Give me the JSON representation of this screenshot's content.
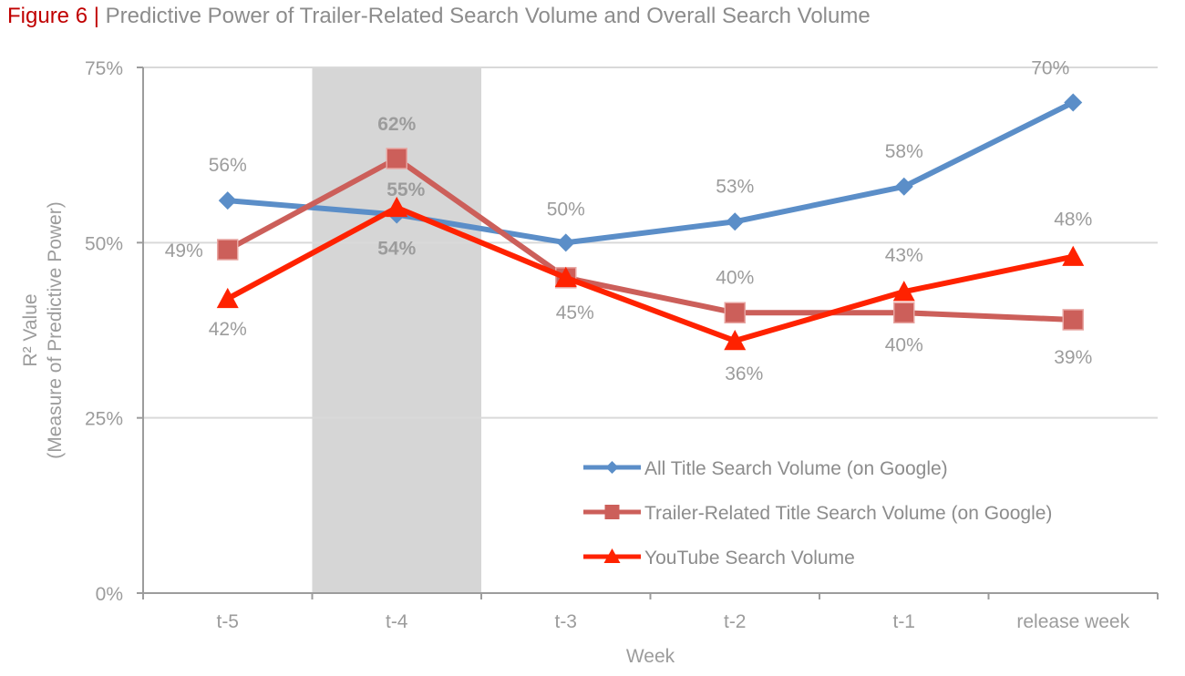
{
  "figure": {
    "number": "Figure 6",
    "separator": "|",
    "title": "Predictive Power of Trailer-Related Search Volume and Overall Search Volume"
  },
  "chart_data": {
    "type": "line",
    "title": "Predictive Power of Trailer-Related Search Volume and Overall Search Volume",
    "xlabel": "Week",
    "ylabel_line1": "R² Value",
    "ylabel_line2": "(Measure of Predictive Power)",
    "ylim": [
      0,
      75
    ],
    "yticks": [
      0,
      25,
      50,
      75
    ],
    "ytick_labels": [
      "0%",
      "25%",
      "50%",
      "75%"
    ],
    "categories": [
      "t-5",
      "t-4",
      "t-3",
      "t-2",
      "t-1",
      "release week"
    ],
    "highlight_category": "t-4",
    "grid": "horizontal",
    "legend_position": "bottom-right",
    "series": [
      {
        "name": "All Title Search Volume (on Google)",
        "color": "#5b8ec8",
        "marker": "diamond",
        "values": [
          56,
          54,
          50,
          53,
          58,
          70
        ],
        "labels": [
          "56%",
          "54%",
          "50%",
          "53%",
          "58%",
          "70%"
        ]
      },
      {
        "name": "Trailer-Related Title Search Volume (on Google)",
        "color": "#cc5f5a",
        "marker": "square",
        "values": [
          49,
          62,
          45,
          40,
          40,
          39
        ],
        "labels": [
          "49%",
          "62%",
          "45%",
          "40%",
          "40%",
          "39%"
        ]
      },
      {
        "name": "YouTube Search Volume",
        "color": "#ff2200",
        "marker": "triangle",
        "values": [
          42,
          55,
          45,
          36,
          43,
          48
        ],
        "labels": [
          "42%",
          "55%",
          "",
          "36%",
          "43%",
          "48%"
        ]
      }
    ]
  }
}
